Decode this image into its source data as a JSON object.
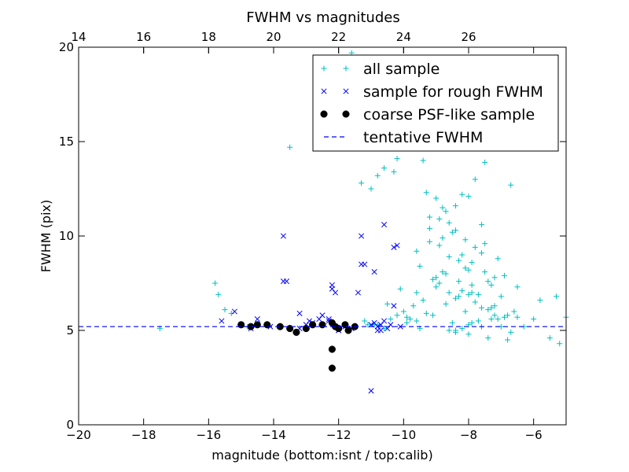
{
  "chart_data": {
    "type": "scatter",
    "title": "FWHM vs magnitudes",
    "xlabel": "magnitude (bottom:isnt / top:calib)",
    "ylabel": "FWHM (pix)",
    "xlim": [
      -20,
      -5
    ],
    "ylim": [
      0,
      20
    ],
    "x_ticks": [
      -20,
      -18,
      -16,
      -14,
      -12,
      -10,
      -8,
      -6
    ],
    "x_tick_labels": [
      "−20",
      "−18",
      "−16",
      "−14",
      "−12",
      "−10",
      "−8",
      "−6"
    ],
    "y_ticks": [
      0,
      5,
      10,
      15,
      20
    ],
    "y_tick_labels": [
      "0",
      "5",
      "10",
      "15",
      "20"
    ],
    "top_axis": {
      "ticks": [
        14,
        16,
        18,
        20,
        22,
        24,
        26
      ],
      "tick_labels": [
        "14",
        "16",
        "18",
        "20",
        "22",
        "24",
        "26"
      ],
      "offset_from_bottom": 34.0
    },
    "legend_position": "upper right",
    "grid": false,
    "series": [
      {
        "name": "all sample",
        "marker": "plus",
        "color": "#00bfbf",
        "x": [
          -17.5,
          -15.8,
          -15.7,
          -15.5,
          -15.3,
          -14.8,
          -14.5,
          -13.5,
          -11.6,
          -11.3,
          -11.2,
          -11.0,
          -10.9,
          -10.8,
          -10.6,
          -10.4,
          -10.3,
          -10.2,
          -10.1,
          -10.0,
          -9.9,
          -9.7,
          -9.6,
          -9.5,
          -9.4,
          -9.3,
          -9.2,
          -9.1,
          -9.0,
          -8.9,
          -8.8,
          -8.7,
          -8.6,
          -8.5,
          -8.4,
          -8.3,
          -8.2,
          -8.1,
          -8.0,
          -7.9,
          -7.8,
          -7.7,
          -7.6,
          -7.5,
          -7.4,
          -7.3,
          -7.2,
          -7.1,
          -7.0,
          -6.9,
          -6.8,
          -6.7,
          -6.6,
          -6.5,
          -6.3,
          -6.0,
          -5.8,
          -5.5,
          -5.3,
          -5.2,
          -5.0,
          -8.0,
          -8.5,
          -7.5,
          -9.0,
          -8.8,
          -8.2,
          -7.8,
          -8.4,
          -8.6,
          -9.2,
          -7.6,
          -8.9,
          -8.1,
          -7.9,
          -9.4,
          -8.3,
          -7.4,
          -8.7,
          -9.1,
          -7.3,
          -8.0,
          -8.5,
          -7.2,
          -9.6,
          -8.2,
          -7.7,
          -8.4,
          -7.0,
          -9.8,
          -10.2,
          -10.5,
          -9.3,
          -8.6,
          -7.1,
          -6.9,
          -8.8,
          -7.5,
          -8.3,
          -9.0,
          -7.8,
          -8.1,
          -6.8,
          -7.9,
          -8.6,
          -9.5,
          -7.6,
          -8.4,
          -7.3,
          -10.8,
          -11.1,
          -10.6,
          -9.7,
          -8.0,
          -7.4,
          -6.7,
          -6.5,
          -8.9,
          -9.2,
          -7.2,
          -8.7,
          -8.2,
          -7.9,
          -9.6,
          -8.4,
          -8.0,
          -7.6,
          -9.9
        ],
        "y": [
          5.1,
          7.5,
          6.9,
          6.1,
          5.9,
          5.2,
          5.3,
          14.7,
          19.7,
          12.8,
          5.5,
          12.5,
          5.3,
          13.2,
          13.6,
          5.6,
          13.4,
          14.1,
          7.2,
          6.0,
          5.4,
          18.6,
          9.2,
          8.4,
          14.0,
          12.3,
          11.0,
          7.7,
          7.8,
          9.5,
          9.9,
          11.3,
          8.9,
          10.2,
          10.3,
          7.6,
          9.0,
          9.8,
          8.2,
          7.0,
          9.4,
          6.9,
          9.1,
          8.1,
          6.1,
          7.4,
          6.3,
          5.6,
          6.8,
          5.7,
          4.5,
          12.7,
          6.0,
          7.3,
          5.2,
          5.6,
          6.6,
          4.6,
          6.8,
          4.3,
          5.7,
          12.1,
          16.0,
          13.9,
          12.0,
          11.5,
          12.2,
          13.0,
          11.6,
          10.7,
          10.4,
          10.6,
          7.5,
          8.3,
          8.6,
          6.6,
          6.8,
          7.6,
          6.4,
          5.8,
          6.2,
          5.3,
          5.4,
          5.8,
          5.5,
          5.1,
          5.5,
          5.0,
          5.2,
          5.6,
          5.8,
          6.4,
          5.9,
          7.0,
          8.8,
          7.9,
          8.1,
          9.6,
          8.7,
          7.3,
          6.5,
          6.0,
          5.8,
          5.4,
          5.0,
          5.1,
          5.2,
          4.9,
          5.6,
          5.3,
          5.3,
          5.1,
          6.3,
          4.8,
          4.6,
          4.9,
          5.7,
          10.9,
          9.7,
          7.8,
          8.0,
          7.1,
          7.4,
          7.0,
          6.7,
          6.9,
          6.2,
          5.7
        ]
      },
      {
        "name": "sample for rough FWHM",
        "marker": "x",
        "color": "#0000ff",
        "x": [
          -15.6,
          -15.2,
          -15.0,
          -14.7,
          -14.5,
          -14.1,
          -13.7,
          -13.6,
          -13.2,
          -13.0,
          -12.9,
          -12.8,
          -12.6,
          -12.5,
          -12.3,
          -12.2,
          -12.1,
          -12.0,
          -11.8,
          -11.6,
          -11.4,
          -11.3,
          -11.2,
          -11.0,
          -10.9,
          -10.8,
          -10.7,
          -10.6,
          -10.5,
          -10.4,
          -10.3,
          -10.2,
          -10.1,
          -11.3,
          -10.9,
          -10.7,
          -10.6,
          -10.3,
          -12.2,
          -12.0,
          -13.7,
          -12.3,
          -11.0,
          -10.8,
          -13.2,
          -14.5
        ],
        "y": [
          5.5,
          6.0,
          5.3,
          5.1,
          5.6,
          5.2,
          10.0,
          7.6,
          5.9,
          5.3,
          5.5,
          5.4,
          5.6,
          5.8,
          5.5,
          7.4,
          7.0,
          5.0,
          5.2,
          5.1,
          7.0,
          10.0,
          8.5,
          5.3,
          5.4,
          5.2,
          5.0,
          5.5,
          5.1,
          5.3,
          9.4,
          9.5,
          5.2,
          8.5,
          8.1,
          5.3,
          10.6,
          6.3,
          7.2,
          5.0,
          7.6,
          5.6,
          1.8,
          5.0,
          5.1,
          5.3
        ]
      },
      {
        "name": "coarse PSF-like sample",
        "marker": "circle",
        "color": "#000000",
        "x": [
          -15.0,
          -14.7,
          -14.5,
          -14.2,
          -13.8,
          -13.5,
          -13.3,
          -13.0,
          -12.8,
          -12.5,
          -12.2,
          -12.1,
          -12.0,
          -11.8,
          -11.7,
          -11.5,
          -12.2,
          -12.2
        ],
        "y": [
          5.3,
          5.2,
          5.3,
          5.3,
          5.2,
          5.1,
          4.9,
          5.1,
          5.3,
          5.3,
          5.4,
          5.2,
          5.1,
          5.3,
          5.0,
          5.2,
          4.0,
          3.0
        ]
      },
      {
        "name": "tentative FWHM",
        "marker": "dashed-line",
        "color": "#0000ff",
        "y": 5.2
      }
    ]
  }
}
